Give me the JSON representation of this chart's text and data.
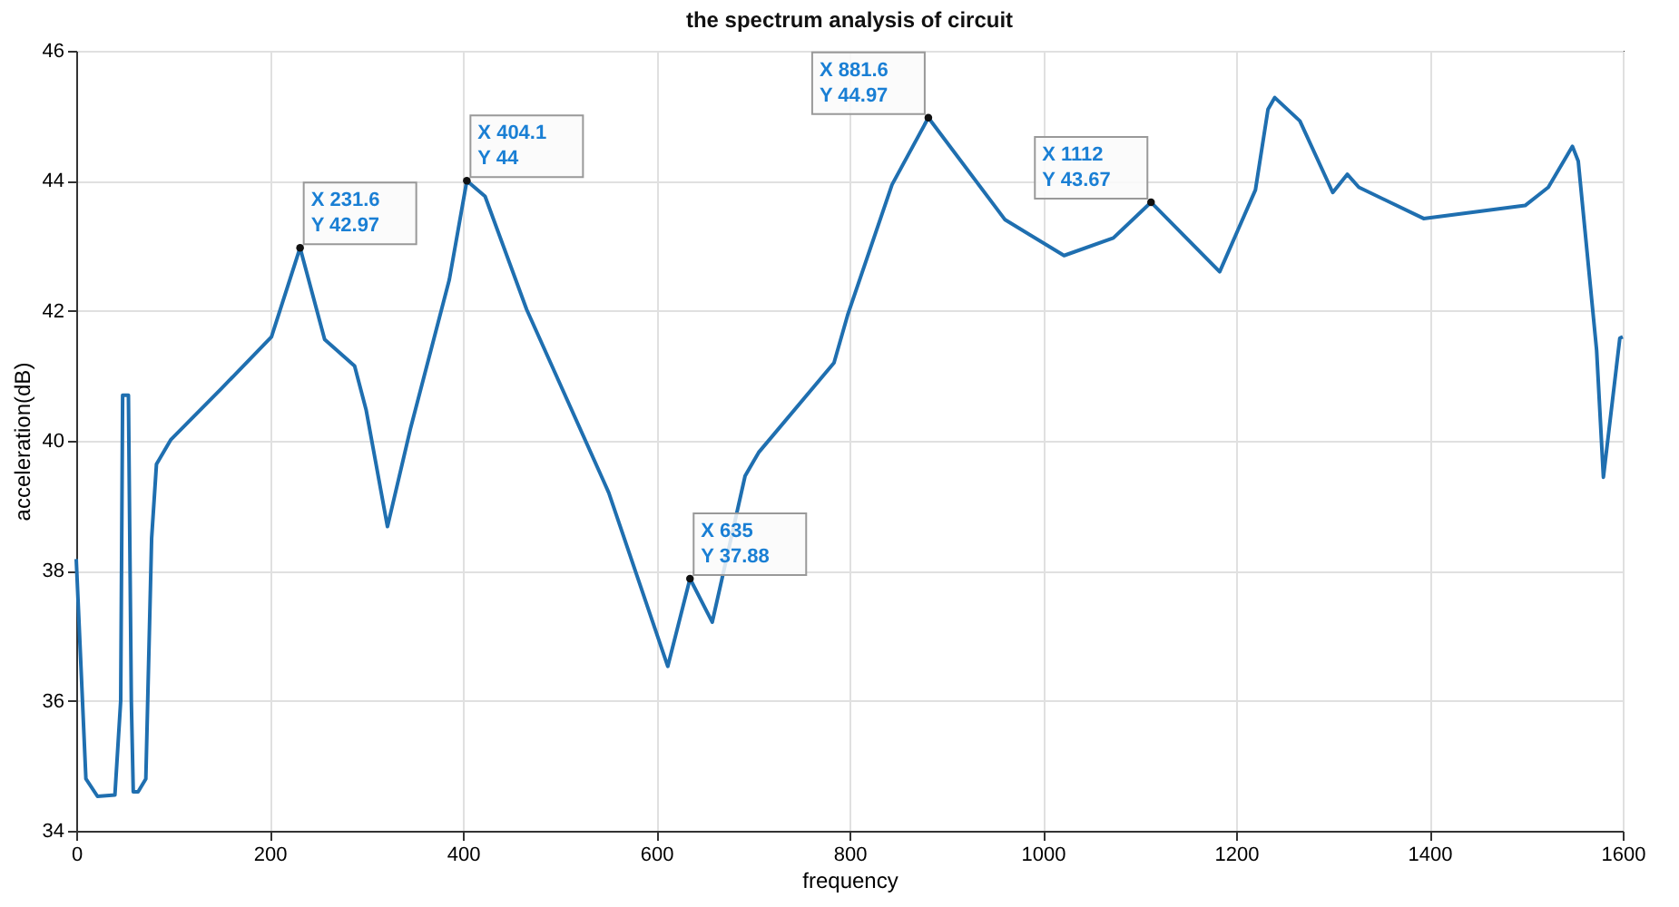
{
  "chart_data": {
    "type": "line",
    "title": "the spectrum analysis of circuit",
    "xlabel": "frequency",
    "ylabel": "acceleration(dB)",
    "x": [
      0,
      10,
      22,
      40,
      46,
      48,
      54,
      57,
      59,
      64,
      72,
      78,
      83,
      98,
      150,
      202,
      231.6,
      257,
      288,
      300,
      322,
      346,
      386,
      404.1,
      423,
      466,
      545,
      551,
      612,
      635,
      658,
      692,
      706,
      784,
      798,
      844,
      881.6,
      961,
      1022,
      1073,
      1112,
      1183,
      1220,
      1233,
      1240,
      1266,
      1300,
      1315,
      1327,
      1394,
      1499,
      1523,
      1548,
      1554,
      1573,
      1580,
      1597,
      1600
    ],
    "series": [
      {
        "color": "#1f6fb0",
        "values": [
          38.18,
          34.8,
          34.53,
          34.55,
          36.0,
          40.7,
          40.7,
          36.0,
          34.6,
          34.6,
          34.8,
          38.5,
          39.64,
          40.02,
          40.8,
          41.6,
          42.97,
          41.56,
          41.15,
          40.47,
          38.68,
          40.2,
          42.48,
          44,
          43.76,
          42.02,
          39.4,
          39.2,
          36.53,
          37.88,
          37.21,
          39.46,
          39.82,
          41.2,
          41.93,
          43.94,
          44.97,
          43.4,
          42.85,
          43.12,
          43.67,
          42.6,
          43.86,
          45.1,
          45.28,
          44.92,
          43.82,
          44.1,
          43.9,
          43.42,
          43.62,
          43.9,
          44.53,
          44.3,
          41.39,
          39.44,
          41.58,
          41.6
        ]
      }
    ],
    "xlim": [
      0,
      1600
    ],
    "xticks": [
      0,
      200,
      400,
      600,
      800,
      1000,
      1200,
      1400,
      1600
    ],
    "ylim": [
      34,
      46
    ],
    "yticks": [
      34,
      36,
      38,
      40,
      42,
      44,
      46
    ],
    "grid": true,
    "annotations": [
      {
        "text": "X 231.6\nY 42.97",
        "x": 231.6,
        "y": 42.97
      },
      {
        "text": "X 404.1\nY 44",
        "x": 404.1,
        "y": 44
      },
      {
        "text": "X 635\nY 37.88",
        "x": 635,
        "y": 37.88
      },
      {
        "text": "X 881.6\nY 44.97",
        "x": 881.6,
        "y": 44.97
      },
      {
        "text": "X 1112\nY 43.67",
        "x": 1112,
        "y": 43.67
      }
    ]
  }
}
